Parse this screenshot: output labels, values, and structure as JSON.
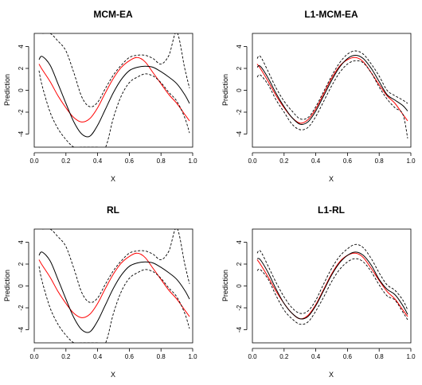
{
  "panels": [
    {
      "title": "MCM-EA",
      "xlabel": "X",
      "ylabel": "Prediction",
      "x_ticks": [
        "0.0",
        "0.2",
        "0.4",
        "0.6",
        "0.8",
        "1.0"
      ],
      "y_ticks": [
        "-4",
        "-2",
        "0",
        "2",
        "4"
      ]
    },
    {
      "title": "L1-MCM-EA",
      "xlabel": "X",
      "ylabel": "Prediction",
      "x_ticks": [
        "0.0",
        "0.2",
        "0.4",
        "0.6",
        "0.8",
        "1.0"
      ],
      "y_ticks": [
        "-4",
        "-2",
        "0",
        "2",
        "4"
      ]
    },
    {
      "title": "RL",
      "xlabel": "X",
      "ylabel": "Prediction",
      "x_ticks": [
        "0.0",
        "0.2",
        "0.4",
        "0.6",
        "0.8",
        "1.0"
      ],
      "y_ticks": [
        "-4",
        "-2",
        "0",
        "2",
        "4"
      ]
    },
    {
      "title": "L1-RL",
      "xlabel": "X",
      "ylabel": "Prediction",
      "x_ticks": [
        "0.0",
        "0.2",
        "0.4",
        "0.6",
        "0.8",
        "1.0"
      ],
      "y_ticks": [
        "-4",
        "-2",
        "0",
        "2",
        "4"
      ]
    }
  ],
  "colors": {
    "estimate": "#000000",
    "band": "#000000",
    "truth": "#ff0000"
  },
  "chart_data": [
    {
      "type": "line",
      "title": "MCM-EA",
      "xlabel": "X",
      "ylabel": "Prediction",
      "xlim": [
        0.0,
        1.0
      ],
      "ylim": [
        -5.2,
        5.2
      ],
      "x": [
        0.03,
        0.05,
        0.1,
        0.15,
        0.2,
        0.25,
        0.3,
        0.35,
        0.4,
        0.45,
        0.5,
        0.55,
        0.6,
        0.65,
        0.7,
        0.75,
        0.8,
        0.85,
        0.9,
        0.95,
        0.98
      ],
      "series": [
        {
          "style": "solid-red",
          "values": [
            2.4,
            1.9,
            0.8,
            -0.5,
            -1.6,
            -2.5,
            -2.9,
            -2.6,
            -1.6,
            -0.2,
            1.1,
            2.1,
            2.7,
            3.0,
            2.6,
            1.6,
            0.6,
            -0.4,
            -1.2,
            -2.2,
            -2.8
          ]
        },
        {
          "style": "solid-black",
          "values": [
            2.8,
            3.1,
            2.3,
            0.6,
            -1.2,
            -2.9,
            -4.0,
            -4.2,
            -3.2,
            -1.7,
            -0.2,
            1.0,
            1.8,
            2.1,
            2.2,
            2.1,
            1.7,
            1.2,
            0.6,
            -0.4,
            -1.2
          ]
        },
        {
          "style": "dashed-black",
          "values": [
            null,
            5.2,
            5.2,
            4.5,
            3.6,
            1.6,
            -0.6,
            -1.5,
            -1.1,
            0.2,
            1.4,
            2.3,
            3.0,
            3.2,
            3.2,
            2.9,
            2.4,
            3.2,
            5.3,
            2.0,
            0.2
          ]
        },
        {
          "style": "dashed-black",
          "values": [
            1.8,
            0.4,
            -2.0,
            -3.5,
            -4.5,
            -5.2,
            -5.2,
            -5.2,
            -5.2,
            -5.2,
            -2.5,
            -0.5,
            0.7,
            1.2,
            1.5,
            1.3,
            0.7,
            -0.2,
            -1.0,
            -2.5,
            -3.9
          ]
        }
      ]
    },
    {
      "type": "line",
      "title": "L1-MCM-EA",
      "xlabel": "X",
      "ylabel": "Prediction",
      "xlim": [
        0.0,
        1.0
      ],
      "ylim": [
        -5.2,
        5.2
      ],
      "x": [
        0.03,
        0.05,
        0.1,
        0.15,
        0.2,
        0.25,
        0.3,
        0.35,
        0.4,
        0.45,
        0.5,
        0.55,
        0.6,
        0.65,
        0.7,
        0.75,
        0.8,
        0.85,
        0.9,
        0.95,
        0.98
      ],
      "series": [
        {
          "style": "solid-red",
          "values": [
            2.4,
            2.0,
            0.8,
            -0.5,
            -1.6,
            -2.5,
            -3.0,
            -2.7,
            -1.7,
            -0.3,
            1.1,
            2.2,
            2.8,
            3.0,
            2.6,
            1.6,
            0.5,
            -0.5,
            -1.2,
            -2.2,
            -2.8
          ]
        },
        {
          "style": "solid-black",
          "values": [
            2.1,
            2.2,
            1.1,
            -0.3,
            -1.5,
            -2.5,
            -3.1,
            -2.9,
            -1.9,
            -0.5,
            0.9,
            2.1,
            2.9,
            3.2,
            2.9,
            2.0,
            0.8,
            -0.4,
            -0.9,
            -1.4,
            -1.9
          ]
        },
        {
          "style": "dashed-black",
          "values": [
            2.9,
            3.1,
            1.7,
            0.2,
            -1.0,
            -1.9,
            -2.6,
            -2.5,
            -1.5,
            -0.1,
            1.3,
            2.5,
            3.3,
            3.6,
            3.3,
            2.4,
            1.3,
            0.0,
            -0.5,
            -0.9,
            -1.2
          ]
        },
        {
          "style": "dashed-black",
          "values": [
            1.2,
            1.4,
            0.5,
            -0.9,
            -2.0,
            -3.1,
            -3.6,
            -3.4,
            -2.4,
            -1.0,
            0.4,
            1.6,
            2.4,
            2.7,
            2.5,
            1.6,
            0.3,
            -0.8,
            -1.6,
            -2.2,
            -4.4
          ]
        }
      ]
    },
    {
      "type": "line",
      "title": "RL",
      "xlabel": "X",
      "ylabel": "Prediction",
      "xlim": [
        0.0,
        1.0
      ],
      "ylim": [
        -5.2,
        5.2
      ],
      "x": [
        0.03,
        0.05,
        0.1,
        0.15,
        0.2,
        0.25,
        0.3,
        0.35,
        0.4,
        0.45,
        0.5,
        0.55,
        0.6,
        0.65,
        0.7,
        0.75,
        0.8,
        0.85,
        0.9,
        0.95,
        0.98
      ],
      "series": [
        {
          "style": "solid-red",
          "values": [
            2.4,
            1.9,
            0.8,
            -0.5,
            -1.6,
            -2.5,
            -2.9,
            -2.6,
            -1.6,
            -0.2,
            1.1,
            2.1,
            2.7,
            3.0,
            2.6,
            1.6,
            0.6,
            -0.4,
            -1.2,
            -2.2,
            -2.8
          ]
        },
        {
          "style": "solid-black",
          "values": [
            2.8,
            3.1,
            2.3,
            0.6,
            -1.2,
            -2.9,
            -4.0,
            -4.2,
            -3.2,
            -1.7,
            -0.2,
            1.0,
            1.8,
            2.1,
            2.2,
            2.1,
            1.7,
            1.2,
            0.6,
            -0.4,
            -1.2
          ]
        },
        {
          "style": "dashed-black",
          "values": [
            null,
            5.2,
            5.2,
            4.5,
            3.6,
            1.6,
            -0.6,
            -1.5,
            -1.1,
            0.2,
            1.4,
            2.3,
            3.0,
            3.2,
            3.2,
            2.9,
            2.4,
            3.2,
            5.3,
            2.0,
            0.2
          ]
        },
        {
          "style": "dashed-black",
          "values": [
            1.8,
            0.4,
            -2.0,
            -3.5,
            -4.5,
            -5.2,
            -5.2,
            -5.2,
            -5.2,
            -5.2,
            -2.5,
            -0.5,
            0.7,
            1.2,
            1.5,
            1.3,
            0.7,
            -0.2,
            -1.0,
            -2.5,
            -3.9
          ]
        }
      ]
    },
    {
      "type": "line",
      "title": "L1-RL",
      "xlabel": "X",
      "ylabel": "Prediction",
      "xlim": [
        0.0,
        1.0
      ],
      "ylim": [
        -5.2,
        5.2
      ],
      "x": [
        0.03,
        0.05,
        0.1,
        0.15,
        0.2,
        0.25,
        0.3,
        0.35,
        0.4,
        0.45,
        0.5,
        0.55,
        0.6,
        0.65,
        0.7,
        0.75,
        0.8,
        0.85,
        0.9,
        0.95,
        0.98
      ],
      "series": [
        {
          "style": "solid-red",
          "values": [
            2.4,
            2.0,
            0.8,
            -0.5,
            -1.6,
            -2.5,
            -3.0,
            -2.7,
            -1.7,
            -0.3,
            1.1,
            2.2,
            2.8,
            3.0,
            2.6,
            1.6,
            0.5,
            -0.5,
            -1.2,
            -2.2,
            -2.8
          ]
        },
        {
          "style": "solid-black",
          "values": [
            2.5,
            2.4,
            1.2,
            -0.3,
            -1.6,
            -2.5,
            -3.0,
            -2.8,
            -1.8,
            -0.4,
            1.0,
            2.1,
            2.8,
            3.1,
            2.8,
            1.9,
            0.6,
            -0.3,
            -0.8,
            -1.8,
            -2.6
          ]
        },
        {
          "style": "dashed-black",
          "values": [
            3.0,
            3.2,
            1.8,
            0.3,
            -1.0,
            -2.0,
            -2.5,
            -2.3,
            -1.3,
            0.2,
            1.6,
            2.7,
            3.4,
            3.8,
            3.5,
            2.5,
            1.2,
            0.1,
            -0.4,
            -1.3,
            -2.2
          ]
        },
        {
          "style": "dashed-black",
          "values": [
            1.4,
            1.5,
            0.6,
            -0.9,
            -2.2,
            -3.0,
            -3.5,
            -3.3,
            -2.3,
            -1.0,
            0.4,
            1.5,
            2.2,
            2.5,
            2.2,
            1.3,
            0.1,
            -0.9,
            -1.3,
            -2.4,
            -3.1
          ]
        }
      ]
    }
  ]
}
